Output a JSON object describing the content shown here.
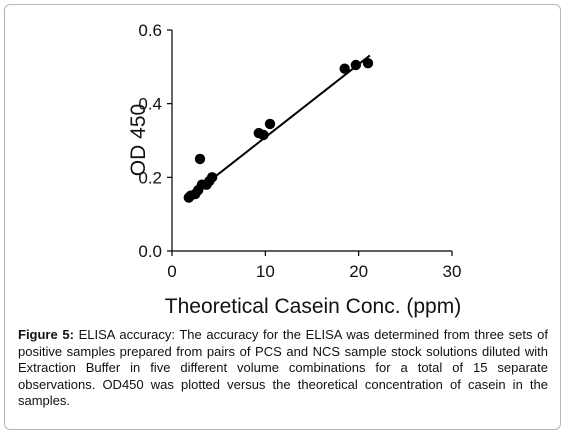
{
  "chart_data": {
    "type": "scatter",
    "xlabel": "Theoretical Casein Conc. (ppm)",
    "ylabel": "OD 450",
    "xlim": [
      0,
      30
    ],
    "ylim": [
      0.0,
      0.6
    ],
    "x_ticks": [
      "0",
      "10",
      "20",
      "30"
    ],
    "y_ticks": [
      "0.0",
      "0.2",
      "0.4",
      "0.6"
    ],
    "grid": false,
    "legend": "none",
    "series": [
      {
        "points": [
          {
            "x": 1.8,
            "y": 0.145
          },
          {
            "x": 2.0,
            "y": 0.15
          },
          {
            "x": 2.5,
            "y": 0.155
          },
          {
            "x": 2.8,
            "y": 0.165
          },
          {
            "x": 3.0,
            "y": 0.25
          },
          {
            "x": 3.2,
            "y": 0.18
          },
          {
            "x": 3.7,
            "y": 0.18
          },
          {
            "x": 4.0,
            "y": 0.19
          },
          {
            "x": 4.3,
            "y": 0.2
          },
          {
            "x": 9.3,
            "y": 0.32
          },
          {
            "x": 9.8,
            "y": 0.315
          },
          {
            "x": 10.5,
            "y": 0.345
          },
          {
            "x": 18.5,
            "y": 0.495
          },
          {
            "x": 19.7,
            "y": 0.505
          },
          {
            "x": 21.0,
            "y": 0.51
          }
        ],
        "color": "#000000"
      }
    ],
    "trendline": {
      "x": [
        1.8,
        21.2
      ],
      "y": [
        0.146,
        0.531
      ],
      "color": "#000000"
    }
  },
  "caption": {
    "label": "Figure 5:",
    "text": "ELISA accuracy: The accuracy for the ELISA was determined from three sets of positive samples prepared from pairs of PCS and NCS sample stock solutions diluted with Extraction Buffer in five different volume combinations for a total of 15 separate observations. OD450 was plotted versus the theoretical concentration of casein in the samples."
  }
}
